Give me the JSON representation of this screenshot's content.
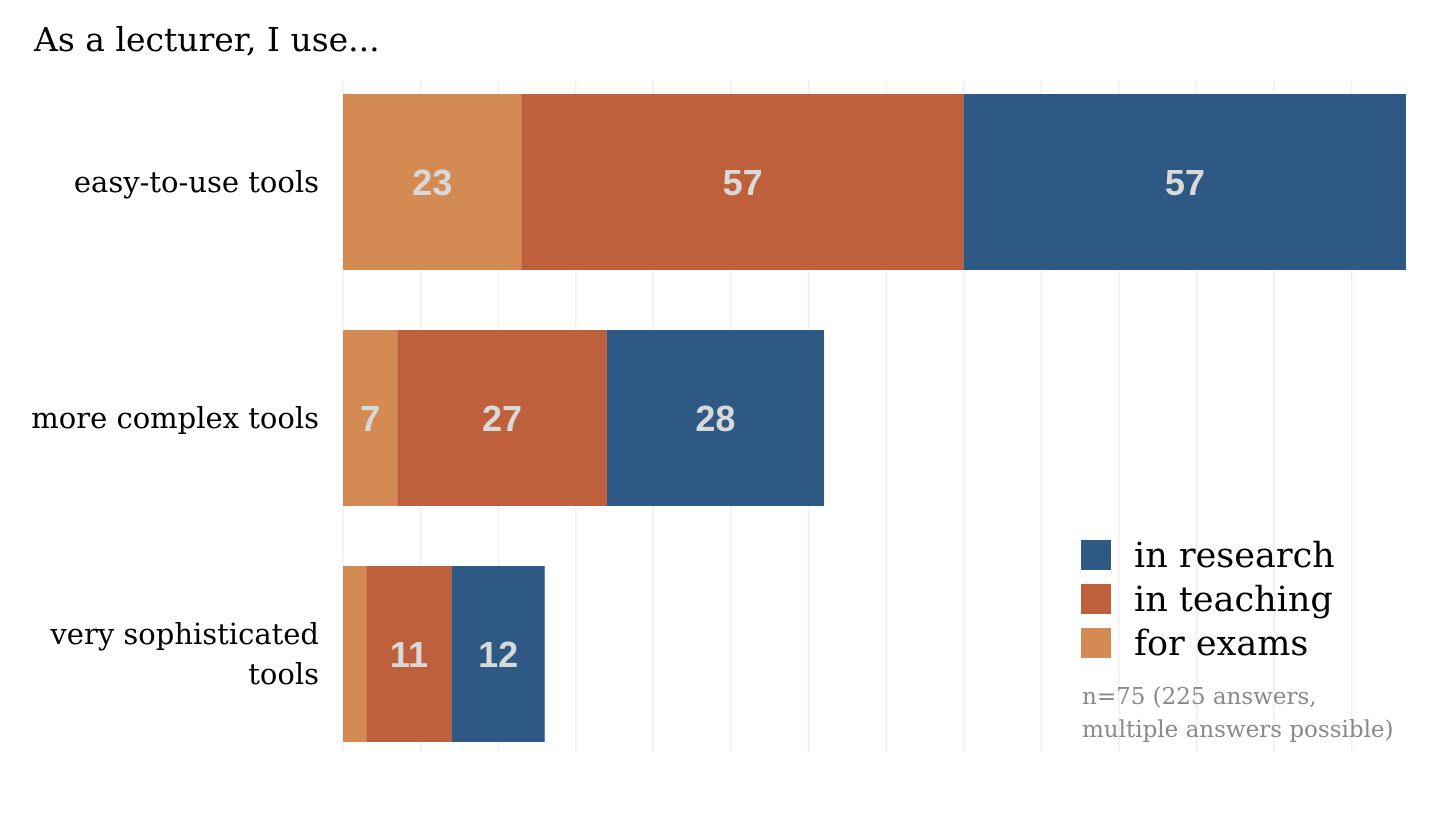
{
  "chart_data": {
    "type": "bar",
    "orientation": "horizontal",
    "stacked": true,
    "title": "As a lecturer, I use...",
    "categories": [
      [
        "easy-to-use tools"
      ],
      [
        "more complex tools"
      ],
      [
        "very sophisticated",
        "tools"
      ]
    ],
    "series": [
      {
        "name": "for exams",
        "values": [
          23,
          7,
          3
        ],
        "labels": [
          "23",
          "7",
          ""
        ],
        "color": "#d48b53"
      },
      {
        "name": "in teaching",
        "values": [
          57,
          27,
          11
        ],
        "labels": [
          "57",
          "27",
          "11"
        ],
        "color": "#be603c"
      },
      {
        "name": "in research",
        "values": [
          57,
          28,
          12
        ],
        "labels": [
          "57",
          "28",
          "12"
        ],
        "color": "#2e5985"
      }
    ],
    "legend_order": [
      "in research",
      "in teaching",
      "for exams"
    ],
    "legend_position": "bottom-right",
    "note": [
      "n=75 (225 answers,",
      "multiple answers possible)"
    ],
    "xlim": [
      0,
      137
    ],
    "grid_step": 10,
    "grid": true,
    "xaxis_labels": false,
    "label_color": "#d9d9d9",
    "grid_color": "#efefef",
    "text_color": "#000000",
    "note_color": "#8a8a8a"
  }
}
